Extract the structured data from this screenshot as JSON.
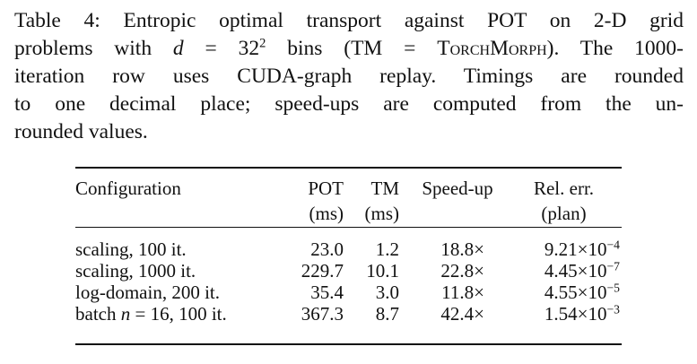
{
  "caption": {
    "label": "Table 4:",
    "line1_a": "Entropic optimal transport against POT on 2-D grid",
    "line2_a": "problems with ",
    "line2_d": "d",
    "line2_eq": " = 32",
    "line2_exp": "2",
    "line2_b": " bins (TM = ",
    "line2_sc": "TorchMorph",
    "line2_c": "). The 1000-",
    "line3": "iteration row uses CUDA-graph replay. Timings are rounded",
    "line4": "to one decimal place; speed-ups are computed from the un-",
    "line5": "rounded values."
  },
  "table": {
    "headers": {
      "configuration": "Configuration",
      "pot": "POT",
      "pot_unit": "(ms)",
      "tm": "TM",
      "tm_unit": "(ms)",
      "speedup": "Speed-up",
      "relerr": "Rel. err.",
      "relerr_sub": "(plan)"
    },
    "rows": [
      {
        "config": "scaling, 100 it.",
        "pot": "23.0",
        "tm": "1.2",
        "speedup": "18.8×",
        "err_mant": "9.21×10",
        "err_exp": "−4"
      },
      {
        "config": "scaling, 1000 it.",
        "pot": "229.7",
        "tm": "10.1",
        "speedup": "22.8×",
        "err_mant": "4.45×10",
        "err_exp": "−7"
      },
      {
        "config": "log-domain, 200 it.",
        "pot": "35.4",
        "tm": "3.0",
        "speedup": "11.8×",
        "err_mant": "4.55×10",
        "err_exp": "−5"
      },
      {
        "config_a": "batch ",
        "config_n": "n",
        "config_b": " = 16, 100 it.",
        "pot": "367.3",
        "tm": "8.7",
        "speedup": "42.4×",
        "err_mant": "1.54×10",
        "err_exp": "−3"
      }
    ]
  }
}
